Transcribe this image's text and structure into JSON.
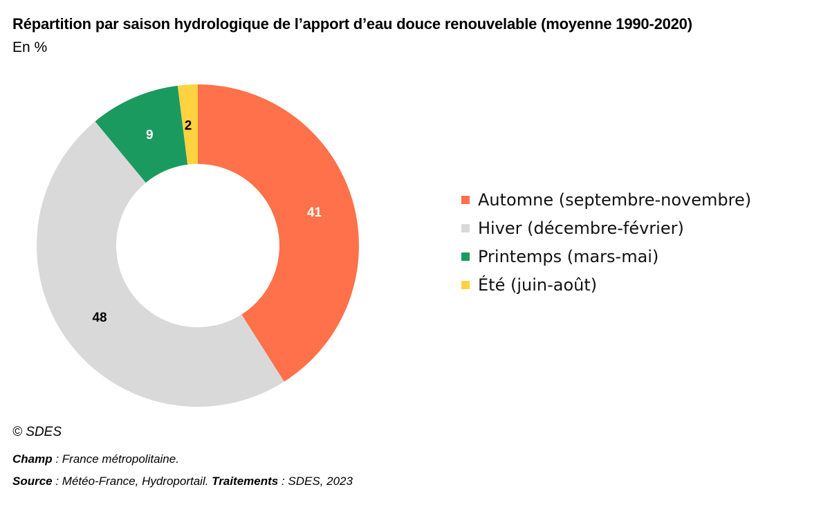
{
  "header": {
    "title": "Répartition par saison hydrologique de l’apport d’eau douce renouvelable (moyenne 1990-2020)",
    "subtitle": "En %"
  },
  "chart_data": {
    "type": "pie",
    "variant": "donut",
    "title": "Répartition par saison hydrologique de l’apport d’eau douce renouvelable (moyenne 1990-2020)",
    "unit": "%",
    "legend_position": "right",
    "categories": [
      "Automne (septembre-novembre)",
      "Hiver (décembre-février)",
      "Printemps (mars-mai)",
      "Été (juin-août)"
    ],
    "values": [
      41,
      48,
      9,
      2
    ],
    "colors": [
      "#ff714b",
      "#d9d9d9",
      "#1a9a5e",
      "#ffd23f"
    ],
    "label_colors": [
      "#ffffff",
      "#000000",
      "#ffffff",
      "#000000"
    ]
  },
  "footer": {
    "copyright": "© SDES",
    "champ_label": "Champ",
    "champ_text": " : France métropolitaine.",
    "source_label": "Source",
    "source_text": " : Météo-France, Hydroportail. ",
    "traitements_label": "Traitements",
    "traitements_text": " : SDES, 2023"
  }
}
